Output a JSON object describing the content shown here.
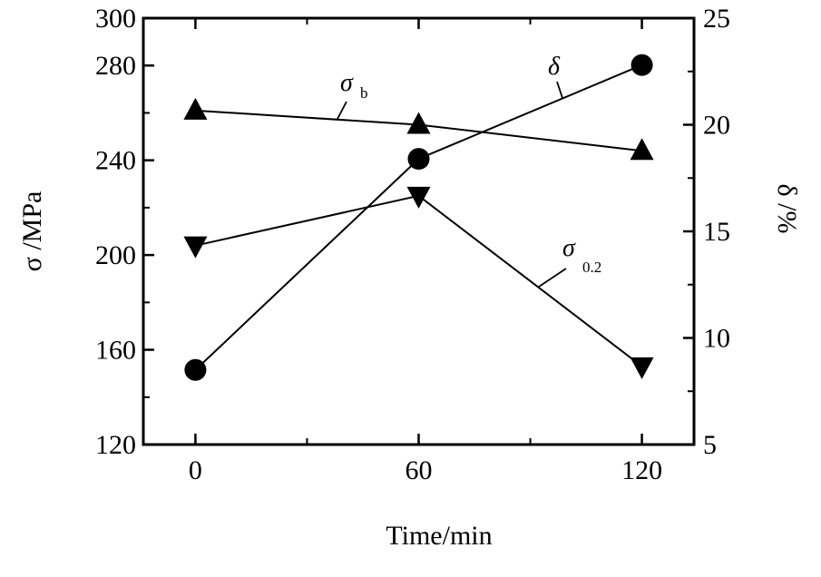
{
  "chart_data": {
    "type": "line",
    "x": [
      0,
      60,
      120
    ],
    "xlabel": "Time/min",
    "ylabel_left": "σ /MPa",
    "ylabel_right": "δ /%",
    "xlim": [
      -14,
      134
    ],
    "ylim_left": [
      120,
      300
    ],
    "ylim_right": [
      5,
      25
    ],
    "xticks": [
      0,
      60,
      120
    ],
    "yticks_left": [
      120,
      160,
      200,
      240,
      280,
      300
    ],
    "yticks_right": [
      5,
      10,
      15,
      20,
      25
    ],
    "grid": false,
    "series": [
      {
        "name": "σ b",
        "axis": "left",
        "marker": "triangle-up",
        "values": [
          261,
          255,
          244
        ]
      },
      {
        "name": "σ 0.2",
        "axis": "left",
        "marker": "triangle-down",
        "values": [
          204,
          225,
          153
        ]
      },
      {
        "name": "δ",
        "axis": "right",
        "marker": "circle",
        "values": [
          8.5,
          18.4,
          22.8
        ]
      }
    ],
    "annotations": [
      {
        "symbol": "σ",
        "sub": "b",
        "series": 0
      },
      {
        "symbol": "δ",
        "sub": "",
        "series": 2
      },
      {
        "symbol": "σ",
        "sub": "0.2",
        "series": 1
      }
    ]
  }
}
